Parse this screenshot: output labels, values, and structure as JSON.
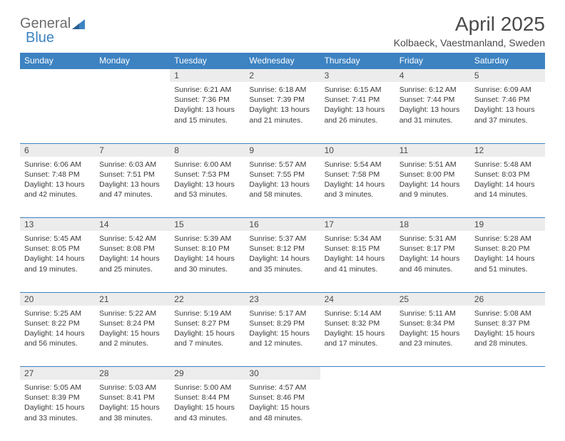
{
  "logo": {
    "textGray": "General",
    "textBlue": "Blue"
  },
  "title": "April 2025",
  "location": "Kolbaeck, Vaestmanland, Sweden",
  "dayHeaders": [
    "Sunday",
    "Monday",
    "Tuesday",
    "Wednesday",
    "Thursday",
    "Friday",
    "Saturday"
  ],
  "colors": {
    "headerBg": "#3d83c2",
    "headerText": "#ffffff",
    "dayNumBg": "#ececec",
    "border": "#3d83c2",
    "textGray": "#6b6b6b",
    "textBlue": "#3d83c2",
    "bodyText": "#3a3a3a"
  },
  "weeks": [
    [
      null,
      null,
      {
        "n": "1",
        "sr": "6:21 AM",
        "ss": "7:36 PM",
        "dl": "13 hours and 15 minutes."
      },
      {
        "n": "2",
        "sr": "6:18 AM",
        "ss": "7:39 PM",
        "dl": "13 hours and 21 minutes."
      },
      {
        "n": "3",
        "sr": "6:15 AM",
        "ss": "7:41 PM",
        "dl": "13 hours and 26 minutes."
      },
      {
        "n": "4",
        "sr": "6:12 AM",
        "ss": "7:44 PM",
        "dl": "13 hours and 31 minutes."
      },
      {
        "n": "5",
        "sr": "6:09 AM",
        "ss": "7:46 PM",
        "dl": "13 hours and 37 minutes."
      }
    ],
    [
      {
        "n": "6",
        "sr": "6:06 AM",
        "ss": "7:48 PM",
        "dl": "13 hours and 42 minutes."
      },
      {
        "n": "7",
        "sr": "6:03 AM",
        "ss": "7:51 PM",
        "dl": "13 hours and 47 minutes."
      },
      {
        "n": "8",
        "sr": "6:00 AM",
        "ss": "7:53 PM",
        "dl": "13 hours and 53 minutes."
      },
      {
        "n": "9",
        "sr": "5:57 AM",
        "ss": "7:55 PM",
        "dl": "13 hours and 58 minutes."
      },
      {
        "n": "10",
        "sr": "5:54 AM",
        "ss": "7:58 PM",
        "dl": "14 hours and 3 minutes."
      },
      {
        "n": "11",
        "sr": "5:51 AM",
        "ss": "8:00 PM",
        "dl": "14 hours and 9 minutes."
      },
      {
        "n": "12",
        "sr": "5:48 AM",
        "ss": "8:03 PM",
        "dl": "14 hours and 14 minutes."
      }
    ],
    [
      {
        "n": "13",
        "sr": "5:45 AM",
        "ss": "8:05 PM",
        "dl": "14 hours and 19 minutes."
      },
      {
        "n": "14",
        "sr": "5:42 AM",
        "ss": "8:08 PM",
        "dl": "14 hours and 25 minutes."
      },
      {
        "n": "15",
        "sr": "5:39 AM",
        "ss": "8:10 PM",
        "dl": "14 hours and 30 minutes."
      },
      {
        "n": "16",
        "sr": "5:37 AM",
        "ss": "8:12 PM",
        "dl": "14 hours and 35 minutes."
      },
      {
        "n": "17",
        "sr": "5:34 AM",
        "ss": "8:15 PM",
        "dl": "14 hours and 41 minutes."
      },
      {
        "n": "18",
        "sr": "5:31 AM",
        "ss": "8:17 PM",
        "dl": "14 hours and 46 minutes."
      },
      {
        "n": "19",
        "sr": "5:28 AM",
        "ss": "8:20 PM",
        "dl": "14 hours and 51 minutes."
      }
    ],
    [
      {
        "n": "20",
        "sr": "5:25 AM",
        "ss": "8:22 PM",
        "dl": "14 hours and 56 minutes."
      },
      {
        "n": "21",
        "sr": "5:22 AM",
        "ss": "8:24 PM",
        "dl": "15 hours and 2 minutes."
      },
      {
        "n": "22",
        "sr": "5:19 AM",
        "ss": "8:27 PM",
        "dl": "15 hours and 7 minutes."
      },
      {
        "n": "23",
        "sr": "5:17 AM",
        "ss": "8:29 PM",
        "dl": "15 hours and 12 minutes."
      },
      {
        "n": "24",
        "sr": "5:14 AM",
        "ss": "8:32 PM",
        "dl": "15 hours and 17 minutes."
      },
      {
        "n": "25",
        "sr": "5:11 AM",
        "ss": "8:34 PM",
        "dl": "15 hours and 23 minutes."
      },
      {
        "n": "26",
        "sr": "5:08 AM",
        "ss": "8:37 PM",
        "dl": "15 hours and 28 minutes."
      }
    ],
    [
      {
        "n": "27",
        "sr": "5:05 AM",
        "ss": "8:39 PM",
        "dl": "15 hours and 33 minutes."
      },
      {
        "n": "28",
        "sr": "5:03 AM",
        "ss": "8:41 PM",
        "dl": "15 hours and 38 minutes."
      },
      {
        "n": "29",
        "sr": "5:00 AM",
        "ss": "8:44 PM",
        "dl": "15 hours and 43 minutes."
      },
      {
        "n": "30",
        "sr": "4:57 AM",
        "ss": "8:46 PM",
        "dl": "15 hours and 48 minutes."
      },
      null,
      null,
      null
    ]
  ],
  "labels": {
    "sunrise": "Sunrise:",
    "sunset": "Sunset:",
    "daylight": "Daylight:"
  }
}
